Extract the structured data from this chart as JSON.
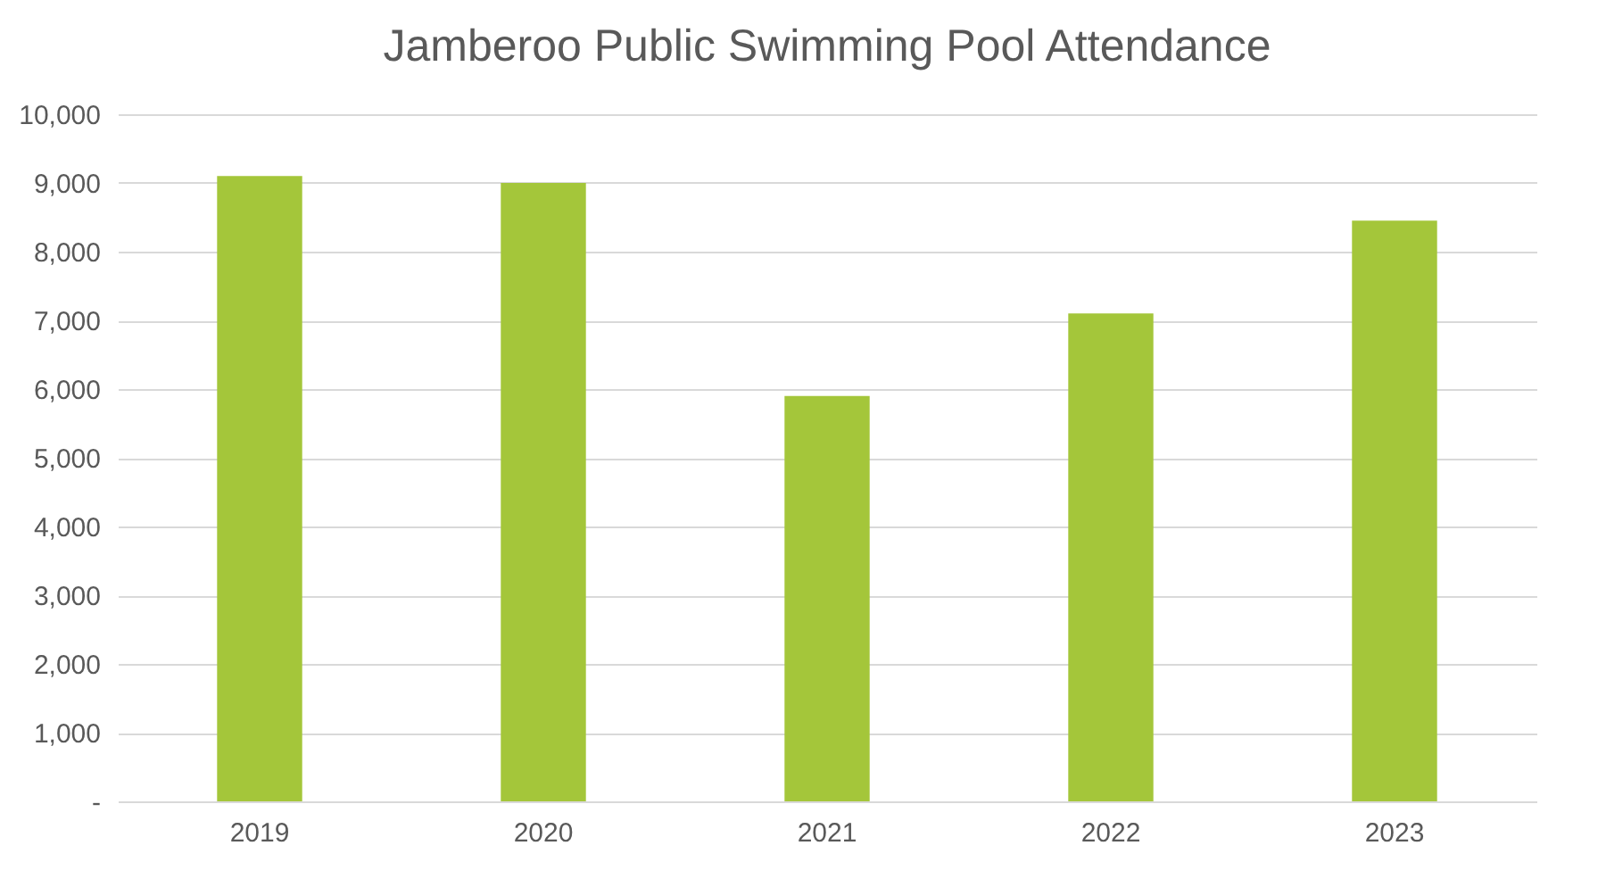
{
  "chart_data": {
    "type": "bar",
    "title": "Jamberoo Public Swimming Pool Attendance",
    "categories": [
      "2019",
      "2020",
      "2021",
      "2022",
      "2023"
    ],
    "values": [
      9100,
      9000,
      5900,
      7100,
      8450
    ],
    "color": "#a4c63a",
    "ylim": [
      0,
      10000
    ],
    "yticks": [
      {
        "value": 0,
        "label": "-"
      },
      {
        "value": 1000,
        "label": "1,000"
      },
      {
        "value": 2000,
        "label": "2,000"
      },
      {
        "value": 3000,
        "label": "3,000"
      },
      {
        "value": 4000,
        "label": "4,000"
      },
      {
        "value": 5000,
        "label": "5,000"
      },
      {
        "value": 6000,
        "label": "6,000"
      },
      {
        "value": 7000,
        "label": "7,000"
      },
      {
        "value": 8000,
        "label": "8,000"
      },
      {
        "value": 9000,
        "label": "9,000"
      },
      {
        "value": 10000,
        "label": "10,000"
      }
    ],
    "grid": "y"
  }
}
